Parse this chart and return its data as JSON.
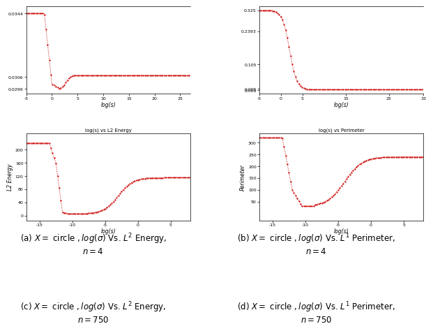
{
  "line_color": "#cc0000",
  "captions": [
    "(a) $X =$ circle $, log(\\sigma)$ Vs. $L^2$ Energy,\n$n = 4$",
    "(b) $X =$ circle $, log(\\sigma)$ Vs. $L^1$ Perimeter,\n$n = 4$",
    "(c) $X =$ circle $, log(\\sigma)$ Vs. $L^2$ Energy,\n$n = 750$",
    "(d) $X =$ circle $, log(\\sigma)$ Vs. $L^1$ Perimeter,\n$n = 750$"
  ],
  "plots": [
    {
      "xlim": [
        -5,
        27
      ],
      "xticks": [
        -5,
        0,
        5,
        10,
        15,
        20,
        25
      ],
      "xlabel": "log(s)",
      "ylim": [
        0.0296,
        0.0348
      ],
      "yticks": [
        0.0299,
        0.0306,
        0.0344
      ],
      "ytick_labels": [
        "0.0299",
        "0.0306",
        "0.0344"
      ],
      "ylabel": "",
      "title": "",
      "has_top_spine": true,
      "has_right_spine": false
    },
    {
      "xlim": [
        -5,
        33
      ],
      "xticks": [
        -5,
        0,
        5,
        15,
        25,
        33
      ],
      "xlabel": "log(s)",
      "ylim": [
        -0.015,
        0.34
      ],
      "yticks": [
        0.0,
        0.005,
        0.105,
        0.2393,
        0.325
      ],
      "ytick_labels": [
        "0.000",
        "0.005",
        "0.105",
        "0.2393",
        "0.325"
      ],
      "ylabel": "",
      "title": "",
      "has_top_spine": true,
      "has_right_spine": false
    },
    {
      "xlim": [
        -17,
        8
      ],
      "xticks": [
        -15,
        -10,
        -5,
        0,
        5
      ],
      "xlabel": "log(s)",
      "ylim": [
        -15,
        250
      ],
      "yticks": [
        0,
        40,
        80,
        120,
        160,
        200
      ],
      "ytick_labels": [
        "0",
        "40",
        "80",
        "120",
        "160",
        "200"
      ],
      "ylabel": "L2 Energy",
      "title": "log(s) vs L2 Energy",
      "has_top_spine": true,
      "has_right_spine": true
    },
    {
      "xlim": [
        -17,
        8
      ],
      "xticks": [
        -15,
        -10,
        -5,
        0,
        5
      ],
      "xlabel": "log(s)",
      "ylim": [
        -30,
        340
      ],
      "yticks": [
        50,
        100,
        150,
        200,
        250,
        300
      ],
      "ytick_labels": [
        "50",
        "100",
        "150",
        "200",
        "250",
        "300"
      ],
      "ylabel": "Perimeter",
      "title": "log(s) vs Perimeter",
      "has_top_spine": true,
      "has_right_spine": true
    }
  ]
}
